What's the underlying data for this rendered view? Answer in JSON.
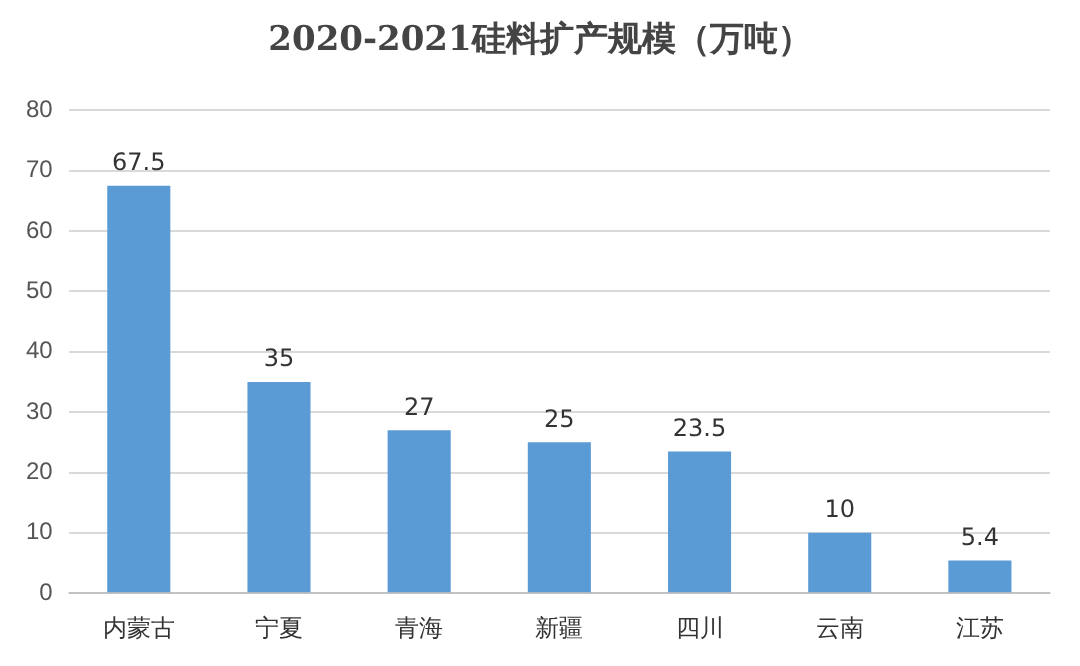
{
  "chart_data": {
    "type": "bar",
    "title": "2020-2021硅料扩产规模（万吨）",
    "categories": [
      "内蒙古",
      "宁夏",
      "青海",
      "新疆",
      "四川",
      "云南",
      "江苏"
    ],
    "values": [
      67.5,
      35,
      27,
      25,
      23.5,
      10,
      5.4
    ],
    "color": "#5b9bd5",
    "ylim": [
      0,
      80
    ],
    "yticks": [
      0,
      10,
      20,
      30,
      40,
      50,
      60,
      70,
      80
    ],
    "grid": "y",
    "data_labels": true,
    "legend": false
  }
}
